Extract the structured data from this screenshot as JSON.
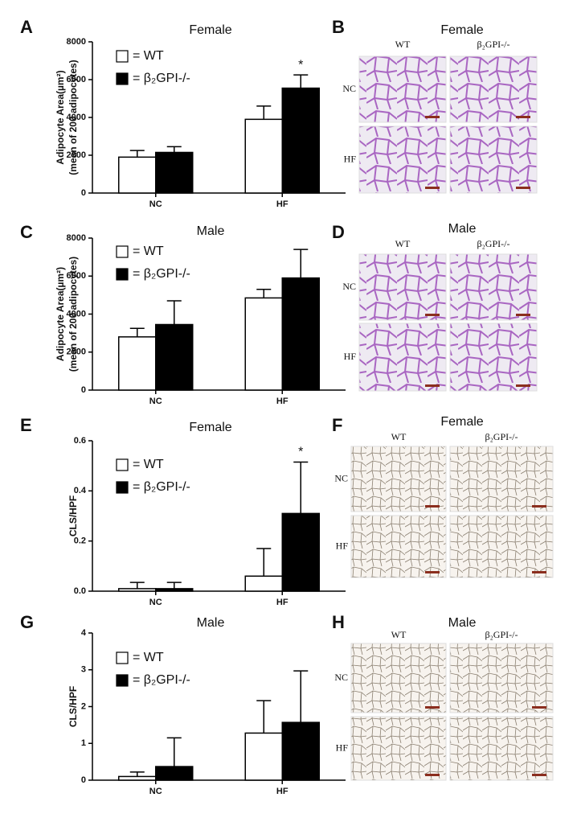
{
  "chart_data": [
    {
      "type": "bar",
      "panel": "A",
      "title": "Female",
      "y_label": [
        "Adipocyte Area(µm²)",
        "(mean of 200 adipocytes)"
      ],
      "categories": [
        "NC",
        "HF"
      ],
      "series": [
        {
          "name": "= WT",
          "color": "#ffffff",
          "values": [
            1900,
            3900
          ],
          "errors": [
            350,
            700
          ]
        },
        {
          "name": "= β₂GPI-/-",
          "color": "#000000",
          "values": [
            2150,
            5550
          ],
          "errors": [
            300,
            700
          ]
        }
      ],
      "ylim": [
        0,
        8000
      ],
      "yticks": [
        0,
        2000,
        4000,
        6000,
        8000
      ],
      "annotation": "*"
    },
    {
      "type": "bar",
      "panel": "C",
      "title": "Male",
      "y_label": [
        "Adipocyte Area(µm²)",
        "(mean of 200 adipocytes)"
      ],
      "categories": [
        "NC",
        "HF"
      ],
      "series": [
        {
          "name": "= WT",
          "color": "#ffffff",
          "values": [
            2800,
            4850
          ],
          "errors": [
            450,
            450
          ]
        },
        {
          "name": "= β₂GPI-/-",
          "color": "#000000",
          "values": [
            3450,
            5900
          ],
          "errors": [
            1250,
            1500
          ]
        }
      ],
      "ylim": [
        0,
        8000
      ],
      "yticks": [
        0,
        2000,
        4000,
        6000,
        8000
      ]
    },
    {
      "type": "bar",
      "panel": "E",
      "title": "Female",
      "y_label": [
        "CLS/HPF"
      ],
      "categories": [
        "NC",
        "HF"
      ],
      "series": [
        {
          "name": "= WT",
          "color": "#ffffff",
          "values": [
            0.01,
            0.06
          ],
          "errors": [
            0.025,
            0.11
          ]
        },
        {
          "name": "= β₂GPI-/-",
          "color": "#000000",
          "values": [
            0.01,
            0.31
          ],
          "errors": [
            0.025,
            0.205
          ]
        }
      ],
      "ylim": [
        0,
        0.6
      ],
      "yticks": [
        {
          "value": 0,
          "label": "0.0"
        },
        0.2,
        0.4,
        0.6
      ],
      "annotation": "*"
    },
    {
      "type": "bar",
      "panel": "G",
      "title": "Male",
      "y_label": [
        "CLS/HPF"
      ],
      "categories": [
        "NC",
        "HF"
      ],
      "series": [
        {
          "name": "= WT",
          "color": "#ffffff",
          "values": [
            0.1,
            1.28
          ],
          "errors": [
            0.12,
            0.88
          ]
        },
        {
          "name": "= β₂GPI-/-",
          "color": "#000000",
          "values": [
            0.37,
            1.57
          ],
          "errors": [
            0.78,
            1.4
          ]
        }
      ],
      "ylim": [
        0,
        4
      ],
      "yticks": [
        0,
        1,
        2,
        3,
        4
      ]
    }
  ],
  "image_panels": [
    {
      "panel": "B",
      "title": "Female",
      "columns": [
        "WT",
        "β₂GPI-/-"
      ],
      "rows": [
        "NC",
        "HF"
      ]
    },
    {
      "panel": "D",
      "title": "Male",
      "columns": [
        "WT",
        "β₂GPI-/-"
      ],
      "rows": [
        "NC",
        "HF"
      ]
    },
    {
      "panel": "F",
      "title": "Female",
      "columns": [
        "WT",
        "β₂GPI-/-"
      ],
      "rows": [
        "NC",
        "HF"
      ]
    },
    {
      "panel": "H",
      "title": "Male",
      "columns": [
        "WT",
        "β₂GPI-/-"
      ],
      "rows": [
        "NC",
        "HF"
      ]
    }
  ]
}
